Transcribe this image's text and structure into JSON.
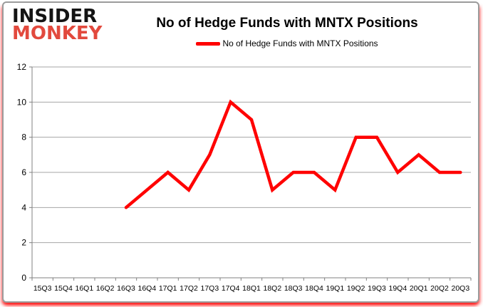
{
  "brand": {
    "line1": "INSIDER",
    "line2": "MONKEY",
    "line1_color": "#141414",
    "line2_color": "#e2493d"
  },
  "header": {
    "title": "No of Hedge Funds with MNTX Positions"
  },
  "legend": {
    "label": "No of Hedge Funds with MNTX Positions",
    "marker_color": "#ff0000"
  },
  "colors": {
    "line": "#ff0000",
    "gridline": "#a6a6a6",
    "axis": "#808080",
    "tick_label": "#000000",
    "card_border": "#9b9b9b",
    "glow": "#ff0000",
    "background": "#ffffff"
  },
  "chart_data": {
    "type": "line",
    "title": "No of Hedge Funds with MNTX Positions",
    "xlabel": "",
    "ylabel": "",
    "categories": [
      "15Q3",
      "15Q4",
      "16Q1",
      "16Q2",
      "16Q3",
      "16Q4",
      "17Q1",
      "17Q2",
      "17Q3",
      "17Q4",
      "18Q1",
      "18Q2",
      "18Q3",
      "18Q4",
      "19Q1",
      "19Q2",
      "19Q3",
      "19Q4",
      "20Q1",
      "20Q2",
      "20Q3"
    ],
    "series": [
      {
        "name": "No of Hedge Funds with MNTX Positions",
        "color": "#ff0000",
        "values": [
          null,
          null,
          null,
          null,
          4,
          5,
          6,
          5,
          7,
          10,
          9,
          5,
          6,
          6,
          5,
          8,
          8,
          6,
          7,
          6,
          6
        ]
      }
    ],
    "ylim": [
      0,
      12
    ],
    "ytick_step": 2,
    "grid": true,
    "legend_position": "top-center"
  }
}
